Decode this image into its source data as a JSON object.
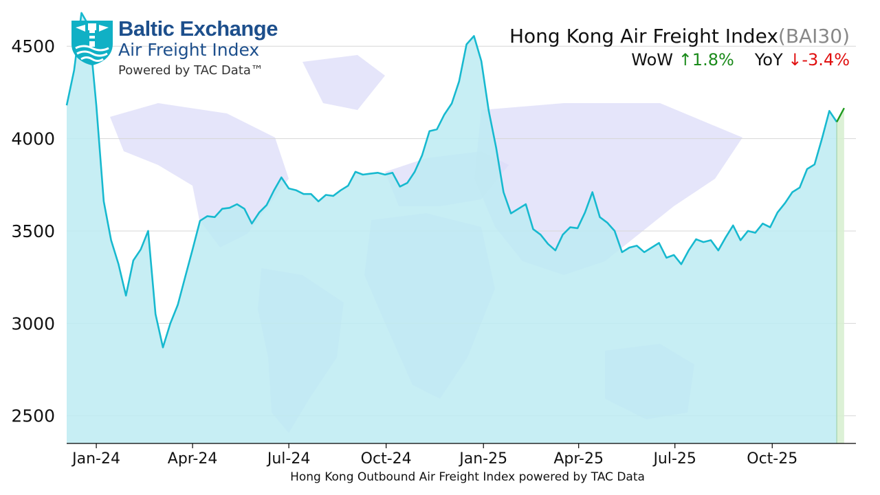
{
  "header": {
    "logo_name": "Baltic Exchange",
    "logo_sub": "Air Freight Index",
    "logo_powered": "Powered by TAC Data™",
    "title": "Hong Kong Air Freight Index",
    "code": "(BAI30)",
    "wow_label": "WoW",
    "wow_arrow": "↑",
    "wow_value": "1.8%",
    "yoy_label": "YoY",
    "yoy_arrow": "↓",
    "yoy_value": "-3.4%"
  },
  "caption": "Hong Kong Outbound Air Freight Index powered by TAC Data",
  "colors": {
    "line": "#17b9cf",
    "fill": "#bdebf2",
    "latest": "#1e9a1e",
    "latest_fill": "#d8efd2",
    "grid": "#d6d6d6",
    "brand": "#1d4f8c",
    "logo_teal": "#10b0c5"
  },
  "chart_data": {
    "type": "area",
    "title": "Hong Kong Air Freight Index",
    "xlabel": "Hong Kong Outbound Air Freight Index powered by TAC Data",
    "ylabel": "",
    "ylim": [
      2350,
      4750
    ],
    "yticks": [
      2500,
      3000,
      3500,
      4000,
      4500
    ],
    "grid": true,
    "xticks": [
      {
        "date": "2024-01-01",
        "label": "Jan-24"
      },
      {
        "date": "2024-04-01",
        "label": "Apr-24"
      },
      {
        "date": "2024-07-01",
        "label": "Jul-24"
      },
      {
        "date": "2024-10-01",
        "label": "Oct-24"
      },
      {
        "date": "2025-01-01",
        "label": "Jan-25"
      },
      {
        "date": "2025-04-01",
        "label": "Apr-25"
      },
      {
        "date": "2025-07-01",
        "label": "Jul-25"
      },
      {
        "date": "2025-10-01",
        "label": "Oct-25"
      }
    ],
    "series": [
      {
        "points": [
          [
            "2023-12-04",
            4180
          ],
          [
            "2023-12-11",
            4370
          ],
          [
            "2023-12-18",
            4680
          ],
          [
            "2023-12-25",
            4610
          ],
          [
            "2024-01-01",
            4180
          ],
          [
            "2024-01-08",
            3660
          ],
          [
            "2024-01-15",
            3450
          ],
          [
            "2024-01-22",
            3320
          ],
          [
            "2024-01-29",
            3150
          ],
          [
            "2024-02-05",
            3340
          ],
          [
            "2024-02-12",
            3400
          ],
          [
            "2024-02-19",
            3500
          ],
          [
            "2024-02-26",
            3050
          ],
          [
            "2024-03-04",
            2870
          ],
          [
            "2024-03-11",
            3000
          ],
          [
            "2024-03-18",
            3100
          ],
          [
            "2024-03-25",
            3250
          ],
          [
            "2024-04-01",
            3400
          ],
          [
            "2024-04-08",
            3555
          ],
          [
            "2024-04-15",
            3580
          ],
          [
            "2024-04-22",
            3575
          ],
          [
            "2024-04-29",
            3620
          ],
          [
            "2024-05-06",
            3625
          ],
          [
            "2024-05-13",
            3645
          ],
          [
            "2024-05-20",
            3620
          ],
          [
            "2024-05-27",
            3540
          ],
          [
            "2024-06-03",
            3600
          ],
          [
            "2024-06-10",
            3640
          ],
          [
            "2024-06-17",
            3720
          ],
          [
            "2024-06-24",
            3790
          ],
          [
            "2024-07-01",
            3730
          ],
          [
            "2024-07-08",
            3720
          ],
          [
            "2024-07-15",
            3700
          ],
          [
            "2024-07-22",
            3700
          ],
          [
            "2024-07-29",
            3660
          ],
          [
            "2024-08-05",
            3695
          ],
          [
            "2024-08-12",
            3690
          ],
          [
            "2024-08-19",
            3720
          ],
          [
            "2024-08-26",
            3745
          ],
          [
            "2024-09-02",
            3820
          ],
          [
            "2024-09-09",
            3805
          ],
          [
            "2024-09-16",
            3810
          ],
          [
            "2024-09-23",
            3815
          ],
          [
            "2024-09-30",
            3805
          ],
          [
            "2024-10-07",
            3815
          ],
          [
            "2024-10-14",
            3740
          ],
          [
            "2024-10-21",
            3760
          ],
          [
            "2024-10-28",
            3820
          ],
          [
            "2024-11-04",
            3910
          ],
          [
            "2024-11-11",
            4040
          ],
          [
            "2024-11-18",
            4050
          ],
          [
            "2024-11-25",
            4130
          ],
          [
            "2024-12-02",
            4190
          ],
          [
            "2024-12-09",
            4310
          ],
          [
            "2024-12-16",
            4510
          ],
          [
            "2024-12-23",
            4555
          ],
          [
            "2024-12-30",
            4420
          ],
          [
            "2025-01-06",
            4150
          ],
          [
            "2025-01-13",
            3950
          ],
          [
            "2025-01-20",
            3710
          ],
          [
            "2025-01-27",
            3595
          ],
          [
            "2025-02-03",
            3620
          ],
          [
            "2025-02-10",
            3645
          ],
          [
            "2025-02-17",
            3510
          ],
          [
            "2025-02-24",
            3480
          ],
          [
            "2025-03-03",
            3430
          ],
          [
            "2025-03-10",
            3395
          ],
          [
            "2025-03-17",
            3480
          ],
          [
            "2025-03-24",
            3520
          ],
          [
            "2025-03-31",
            3515
          ],
          [
            "2025-04-07",
            3600
          ],
          [
            "2025-04-14",
            3710
          ],
          [
            "2025-04-21",
            3575
          ],
          [
            "2025-04-28",
            3545
          ],
          [
            "2025-05-05",
            3500
          ],
          [
            "2025-05-12",
            3385
          ],
          [
            "2025-05-19",
            3410
          ],
          [
            "2025-05-26",
            3420
          ],
          [
            "2025-06-02",
            3385
          ],
          [
            "2025-06-09",
            3410
          ],
          [
            "2025-06-16",
            3435
          ],
          [
            "2025-06-23",
            3355
          ],
          [
            "2025-06-30",
            3370
          ],
          [
            "2025-07-07",
            3320
          ],
          [
            "2025-07-14",
            3395
          ],
          [
            "2025-07-21",
            3455
          ],
          [
            "2025-07-28",
            3440
          ],
          [
            "2025-08-04",
            3450
          ],
          [
            "2025-08-11",
            3395
          ],
          [
            "2025-08-18",
            3465
          ],
          [
            "2025-08-25",
            3530
          ],
          [
            "2025-09-01",
            3450
          ],
          [
            "2025-09-08",
            3500
          ],
          [
            "2025-09-15",
            3490
          ],
          [
            "2025-09-22",
            3540
          ],
          [
            "2025-09-29",
            3520
          ],
          [
            "2025-10-06",
            3600
          ],
          [
            "2025-10-13",
            3650
          ],
          [
            "2025-10-20",
            3710
          ],
          [
            "2025-10-27",
            3735
          ],
          [
            "2025-11-03",
            3835
          ],
          [
            "2025-11-10",
            3860
          ],
          [
            "2025-11-17",
            4000
          ],
          [
            "2025-11-24",
            4150
          ],
          [
            "2025-12-01",
            4090
          ]
        ]
      },
      {
        "points": [
          [
            "2025-12-01",
            4090
          ],
          [
            "2025-12-08",
            4165
          ]
        ]
      }
    ]
  }
}
